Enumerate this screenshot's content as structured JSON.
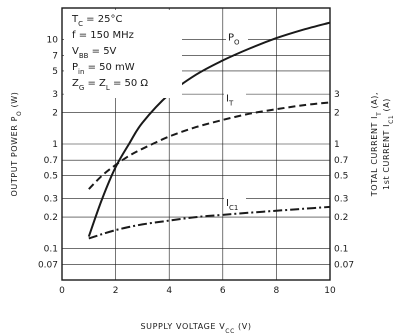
{
  "chart_data": {
    "type": "line",
    "x_axis": {
      "label": "SUPPLY VOLTAGE V",
      "label_sub": "CC",
      "label_unit": " (V)",
      "range": [
        0,
        10
      ],
      "ticks": [
        0,
        2,
        4,
        6,
        8,
        10
      ],
      "tick_labels": [
        "0",
        "2",
        "4",
        "6",
        "8",
        "10"
      ]
    },
    "y_axis_left": {
      "label": "OUTPUT POWER P",
      "label_sub": "O",
      "label_unit": " (W)",
      "scale": "log",
      "range": [
        0.05,
        20
      ],
      "ticks": [
        0.07,
        0.1,
        0.2,
        0.3,
        0.5,
        0.7,
        1,
        2,
        3,
        5,
        7,
        10
      ],
      "tick_labels": [
        "0.07",
        "0.1",
        "0.2",
        "0.3",
        "0.5",
        "0.7",
        "1",
        "2",
        "3",
        "5",
        "7",
        "10"
      ]
    },
    "y_axis_right": {
      "label_1": "TOTAL CURRENT I",
      "label_1_sub": "T",
      "label_1_unit": " (A),",
      "label_2": "1st CURRENT I",
      "label_2_sub": "C1",
      "label_2_unit": " (A)",
      "scale": "log",
      "ticks": [
        0.07,
        0.1,
        0.2,
        0.3,
        0.5,
        0.7,
        1,
        2,
        3
      ],
      "tick_labels": [
        "0.07",
        "0.1",
        "0.2",
        "0.3",
        "0.5",
        "0.7",
        "1",
        "2",
        "3"
      ]
    },
    "conditions": [
      {
        "main": "T",
        "sub": "C",
        "rest": " = 25°C"
      },
      {
        "main": "f = 150 MHz",
        "sub": "",
        "rest": ""
      },
      {
        "main": "V",
        "sub": "BB",
        "rest": " = 5V"
      },
      {
        "main": "P",
        "sub": "in",
        "rest": " = 50 mW"
      },
      {
        "main": "Z",
        "sub": "G",
        "rest": " = Z",
        "sub2": "L",
        "rest2": " = 50 Ω"
      }
    ],
    "series": [
      {
        "name": "P",
        "name_sub": "O",
        "style": "solid",
        "x": [
          1.0,
          1.5,
          2.0,
          2.5,
          3.0,
          4.0,
          5.0,
          6.0,
          7.0,
          8.0,
          9.0,
          10.0
        ],
        "y": [
          0.13,
          0.3,
          0.6,
          1.0,
          1.6,
          3.0,
          4.6,
          6.3,
          8.2,
          10.3,
          12.4,
          14.5
        ]
      },
      {
        "name": "I",
        "name_sub": "T",
        "style": "dashed",
        "x": [
          1.0,
          1.5,
          2.0,
          2.5,
          3.0,
          4.0,
          5.0,
          6.0,
          7.0,
          8.0,
          9.0,
          10.0
        ],
        "y": [
          0.37,
          0.5,
          0.63,
          0.77,
          0.9,
          1.18,
          1.45,
          1.7,
          1.95,
          2.15,
          2.35,
          2.5
        ]
      },
      {
        "name": "I",
        "name_sub": "C1",
        "style": "dashdot",
        "x": [
          1.0,
          2.0,
          3.0,
          4.0,
          5.0,
          6.0,
          7.0,
          8.0,
          9.0,
          10.0
        ],
        "y": [
          0.125,
          0.15,
          0.17,
          0.185,
          0.2,
          0.21,
          0.22,
          0.23,
          0.24,
          0.25
        ]
      }
    ],
    "grid": true,
    "colors": {
      "ink": "#1a1a1a",
      "background": "#ffffff"
    }
  }
}
